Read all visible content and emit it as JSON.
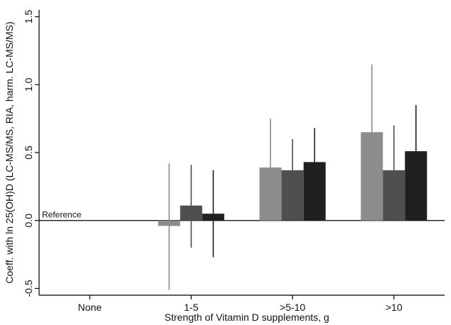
{
  "chart_data": {
    "type": "bar",
    "title": "",
    "xlabel": "Strength of Vitamin D supplements,   g",
    "ylabel": "Coeff. with ln 25(OH)D (LC-MS/MS, RIA, harm. LC-MS/MS)",
    "categories": [
      "None",
      "1-5",
      ">5-10",
      ">10"
    ],
    "ylim": [
      -0.55,
      1.55
    ],
    "yticks": [
      -0.5,
      0.0,
      0.5,
      1.0,
      1.5
    ],
    "ytick_labels": [
      "-0.5",
      "0.0",
      "0.5",
      "1.0",
      "1.5"
    ],
    "reference_label": "Reference",
    "grid": false,
    "legend": "none",
    "series": [
      {
        "color": "#8c8c8c",
        "values": [
          null,
          -0.04,
          0.39,
          0.65
        ],
        "ci_low": [
          null,
          -0.51,
          0.03,
          0.16
        ],
        "ci_high": [
          null,
          0.42,
          0.75,
          1.15
        ]
      },
      {
        "color": "#4f4f4f",
        "values": [
          null,
          0.11,
          0.37,
          0.37
        ],
        "ci_low": [
          null,
          -0.2,
          0.14,
          0.05
        ],
        "ci_high": [
          null,
          0.41,
          0.6,
          0.7
        ]
      },
      {
        "color": "#202020",
        "values": [
          null,
          0.05,
          0.43,
          0.51
        ],
        "ci_low": [
          null,
          -0.27,
          0.2,
          0.17
        ],
        "ci_high": [
          null,
          0.37,
          0.68,
          0.85
        ]
      }
    ]
  }
}
